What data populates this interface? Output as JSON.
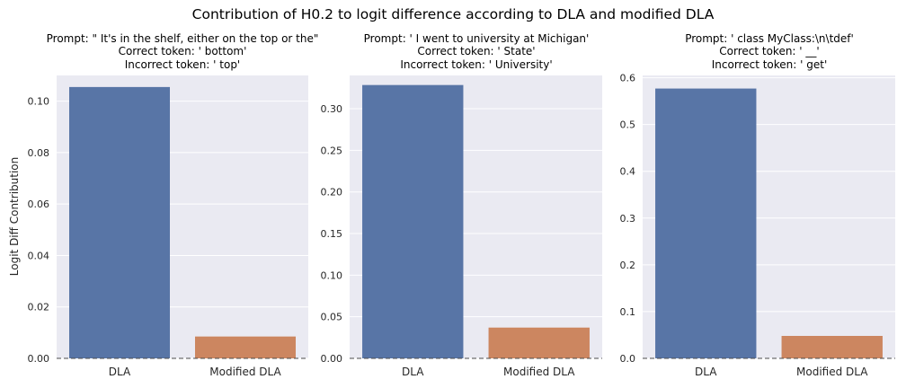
{
  "figure": {
    "title": "Contribution of H0.2 to logit difference according to DLA and modified DLA",
    "ylabel": "Logit Diff Contribution"
  },
  "colors": {
    "background": "#eaeaf2",
    "grid": "#ffffff",
    "dla_bar": "#5875a6",
    "modified_dla_bar": "#cc8660",
    "zero_line": "#4c4c4c"
  },
  "chart_data": [
    {
      "type": "bar",
      "title_lines": [
        "Prompt: \" It's in the shelf, either on the top or the\"",
        "Correct token: ' bottom'",
        "Incorrect token: ' top'"
      ],
      "categories": [
        "DLA",
        "Modified DLA"
      ],
      "values": [
        0.1055,
        0.0085
      ],
      "ylim": [
        0,
        0.11
      ],
      "yticks": [
        "0.00",
        "0.02",
        "0.04",
        "0.06",
        "0.08",
        "0.10"
      ],
      "ylabel": "Logit Diff Contribution",
      "grid": true,
      "zero_line": "dashed"
    },
    {
      "type": "bar",
      "title_lines": [
        "Prompt: ' I went to university at Michigan'",
        "Correct token: ' State'",
        "Incorrect token: ' University'"
      ],
      "categories": [
        "DLA",
        "Modified DLA"
      ],
      "values": [
        0.3285,
        0.037
      ],
      "ylim": [
        0,
        0.34
      ],
      "yticks": [
        "0.00",
        "0.05",
        "0.10",
        "0.15",
        "0.20",
        "0.25",
        "0.30"
      ],
      "ylabel": "",
      "grid": true,
      "zero_line": "dashed"
    },
    {
      "type": "bar",
      "title_lines": [
        "Prompt: ' class MyClass:\\n\\tdef'",
        "Correct token: ' __'",
        "Incorrect token: ' get'"
      ],
      "categories": [
        "DLA",
        "Modified DLA"
      ],
      "values": [
        0.577,
        0.048
      ],
      "ylim": [
        0,
        0.605
      ],
      "yticks": [
        "0.0",
        "0.1",
        "0.2",
        "0.3",
        "0.4",
        "0.5",
        "0.6"
      ],
      "ylabel": "",
      "grid": true,
      "zero_line": "dashed"
    }
  ]
}
